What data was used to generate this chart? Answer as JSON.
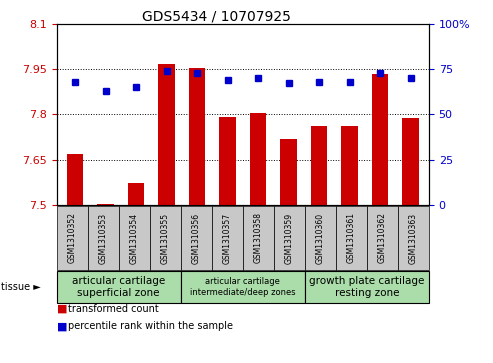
{
  "title": "GDS5434 / 10707925",
  "samples": [
    "GSM1310352",
    "GSM1310353",
    "GSM1310354",
    "GSM1310355",
    "GSM1310356",
    "GSM1310357",
    "GSM1310358",
    "GSM1310359",
    "GSM1310360",
    "GSM1310361",
    "GSM1310362",
    "GSM1310363"
  ],
  "red_values": [
    7.668,
    7.502,
    7.573,
    7.966,
    7.952,
    7.791,
    7.803,
    7.718,
    7.763,
    7.762,
    7.934,
    7.787
  ],
  "blue_values": [
    68,
    63,
    65,
    74,
    73,
    69,
    70,
    67,
    68,
    68,
    73,
    70
  ],
  "ylim_left": [
    7.5,
    8.1
  ],
  "ylim_right": [
    0,
    100
  ],
  "yticks_left": [
    7.5,
    7.65,
    7.8,
    7.95,
    8.1
  ],
  "yticks_right": [
    0,
    25,
    50,
    75,
    100
  ],
  "ytick_labels_right": [
    "0",
    "25",
    "50",
    "75",
    "100%"
  ],
  "tissue_groups": [
    {
      "label": "articular cartilage\nsuperficial zone",
      "start": 0,
      "end": 4,
      "color": "#aaddaa"
    },
    {
      "label": "articular cartilage\nintermediate/deep zones",
      "start": 4,
      "end": 8,
      "color": "#aaddaa"
    },
    {
      "label": "growth plate cartilage\nresting zone",
      "start": 8,
      "end": 12,
      "color": "#aaddaa"
    }
  ],
  "tissue_label": "tissue ►",
  "bar_color": "#cc0000",
  "dot_color": "#0000cc",
  "sample_bg_color": "#c8c8c8",
  "left_axis_color": "#cc0000",
  "right_axis_color": "#0000cc",
  "legend_items": [
    {
      "color": "#cc0000",
      "label": "transformed count"
    },
    {
      "color": "#0000cc",
      "label": "percentile rank within the sample"
    }
  ]
}
